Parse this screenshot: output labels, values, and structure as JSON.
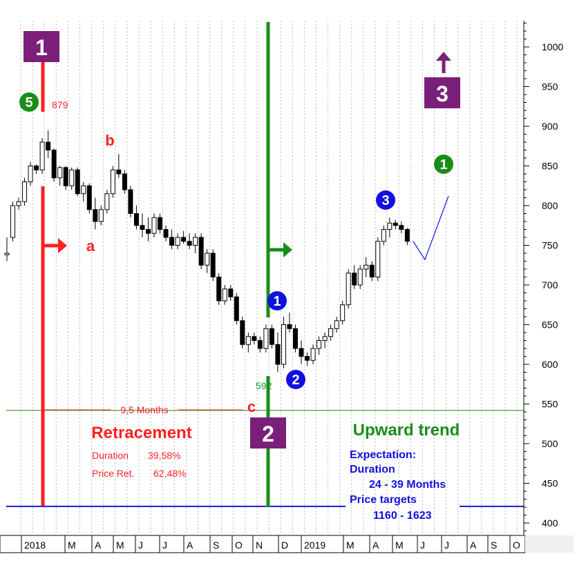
{
  "chart_data": {
    "type": "candlestick",
    "y_axis": {
      "range": [
        380,
        1030
      ],
      "ticks": [
        400,
        450,
        500,
        550,
        600,
        650,
        700,
        750,
        800,
        850,
        900,
        950,
        1000
      ],
      "side": "right",
      "minor_step": 10
    },
    "x_axis": {
      "labels": [
        "2018",
        "M",
        "A",
        "M",
        "J",
        "J",
        "A",
        "S",
        "O",
        "N",
        "D",
        "2019",
        "M",
        "A",
        "M",
        "J",
        "J",
        "A",
        "S",
        "O"
      ],
      "label_index": [
        0,
        1,
        2,
        3,
        4,
        5,
        6,
        7,
        8,
        9,
        10,
        11,
        12,
        13,
        14,
        15,
        16,
        17,
        18,
        19
      ],
      "start_date": "2018-01",
      "grid": "dotted-vertical-weekly"
    },
    "candles": [
      [
        738,
        760,
        730,
        740
      ],
      [
        760,
        805,
        755,
        800
      ],
      [
        800,
        810,
        795,
        805
      ],
      [
        805,
        835,
        800,
        830
      ],
      [
        830,
        855,
        825,
        850
      ],
      [
        850,
        852,
        840,
        845
      ],
      [
        845,
        885,
        840,
        880
      ],
      [
        880,
        895,
        860,
        870
      ],
      [
        870,
        872,
        830,
        835
      ],
      [
        835,
        850,
        825,
        848
      ],
      [
        848,
        850,
        820,
        825
      ],
      [
        825,
        848,
        820,
        845
      ],
      [
        845,
        848,
        812,
        815
      ],
      [
        815,
        830,
        805,
        825
      ],
      [
        825,
        828,
        790,
        795
      ],
      [
        795,
        810,
        770,
        780
      ],
      [
        780,
        800,
        775,
        795
      ],
      [
        795,
        820,
        790,
        815
      ],
      [
        815,
        850,
        810,
        845
      ],
      [
        845,
        865,
        835,
        840
      ],
      [
        840,
        845,
        815,
        820
      ],
      [
        820,
        825,
        785,
        790
      ],
      [
        790,
        800,
        770,
        775
      ],
      [
        775,
        790,
        760,
        770
      ],
      [
        770,
        785,
        755,
        765
      ],
      [
        765,
        790,
        760,
        785
      ],
      [
        785,
        790,
        765,
        770
      ],
      [
        770,
        775,
        755,
        760
      ],
      [
        760,
        770,
        745,
        750
      ],
      [
        750,
        765,
        745,
        760
      ],
      [
        760,
        768,
        752,
        755
      ],
      [
        755,
        765,
        745,
        750
      ],
      [
        750,
        765,
        740,
        760
      ],
      [
        760,
        765,
        720,
        725
      ],
      [
        725,
        745,
        715,
        740
      ],
      [
        740,
        745,
        705,
        710
      ],
      [
        710,
        715,
        675,
        680
      ],
      [
        680,
        700,
        675,
        695
      ],
      [
        695,
        700,
        680,
        685
      ],
      [
        685,
        690,
        650,
        655
      ],
      [
        655,
        660,
        620,
        625
      ],
      [
        625,
        640,
        615,
        635
      ],
      [
        635,
        640,
        625,
        630
      ],
      [
        630,
        635,
        615,
        620
      ],
      [
        620,
        650,
        615,
        645
      ],
      [
        645,
        650,
        620,
        625
      ],
      [
        625,
        640,
        590,
        600
      ],
      [
        600,
        660,
        595,
        650
      ],
      [
        650,
        665,
        640,
        645
      ],
      [
        645,
        650,
        615,
        620
      ],
      [
        620,
        630,
        600,
        610
      ],
      [
        610,
        615,
        598,
        605
      ],
      [
        605,
        625,
        600,
        620
      ],
      [
        620,
        635,
        612,
        630
      ],
      [
        630,
        640,
        620,
        635
      ],
      [
        635,
        650,
        630,
        645
      ],
      [
        645,
        660,
        640,
        655
      ],
      [
        655,
        680,
        650,
        675
      ],
      [
        675,
        720,
        670,
        715
      ],
      [
        715,
        725,
        695,
        700
      ],
      [
        700,
        725,
        695,
        720
      ],
      [
        720,
        735,
        710,
        725
      ],
      [
        725,
        730,
        705,
        710
      ],
      [
        710,
        760,
        705,
        755
      ],
      [
        755,
        775,
        750,
        770
      ],
      [
        770,
        785,
        760,
        778
      ],
      [
        778,
        782,
        770,
        775
      ],
      [
        775,
        780,
        765,
        770
      ],
      [
        770,
        772,
        750,
        755
      ]
    ],
    "projection_path": [
      [
        69,
        755
      ],
      [
        71,
        732
      ],
      [
        75,
        812
      ]
    ],
    "annotations": {
      "high_value": "879",
      "low_value": "592",
      "top_box_label": "1",
      "mid_box_label": "2",
      "right_box_label": "3",
      "wave_5": "5",
      "wave_1_circle": "1",
      "wave_2_circle": "2",
      "wave_3_circle": "3",
      "wave_1_green": "1",
      "label_a": "a",
      "label_b": "b",
      "label_c": "c",
      "duration_text": "9,5 Months",
      "retracement_title": "Retracement",
      "retracement_duration_label": "Duration",
      "retracement_duration_value": "39,58%",
      "retracement_price_label": "Price Ret.",
      "retracement_price_value": "62,48%",
      "trend_title": "Upward trend",
      "expectation_label": "Expectation:",
      "duration_label": "Duration",
      "duration_range": "24 - 39 Months",
      "targets_label": "Price targets",
      "targets_range": "1160 - 1623"
    },
    "levels": {
      "green_line": 542,
      "blue_line": 421
    },
    "colors": {
      "red": "#ff2020",
      "green": "#1a8c1a",
      "blue": "#1010e0",
      "purple": "#7a1f7a",
      "blue_line": "#1a1ad0",
      "candle_edge": "#000000"
    }
  }
}
